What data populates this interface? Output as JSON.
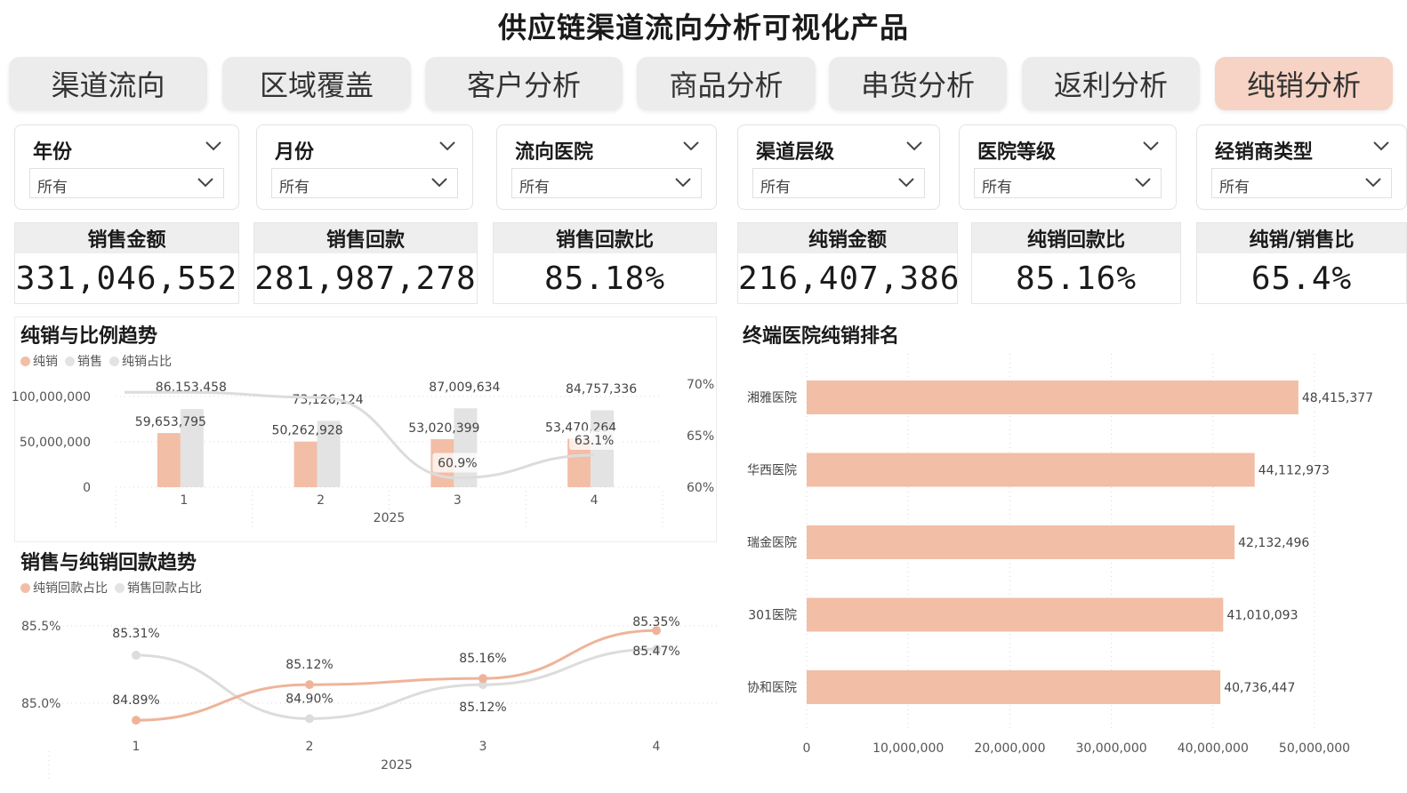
{
  "header": {
    "title": "供应链渠道流向分析可视化产品"
  },
  "tabs": [
    {
      "label": "渠道流向",
      "active": false
    },
    {
      "label": "区域覆盖",
      "active": false
    },
    {
      "label": "客户分析",
      "active": false
    },
    {
      "label": "商品分析",
      "active": false
    },
    {
      "label": "串货分析",
      "active": false
    },
    {
      "label": "返利分析",
      "active": false
    },
    {
      "label": "纯销分析",
      "active": true
    }
  ],
  "filters": [
    {
      "label": "年份",
      "value": "所有"
    },
    {
      "label": "月份",
      "value": "所有"
    },
    {
      "label": "流向医院",
      "value": "所有"
    },
    {
      "label": "渠道层级",
      "value": "所有"
    },
    {
      "label": "医院等级",
      "value": "所有"
    },
    {
      "label": "经销商类型",
      "value": "所有"
    }
  ],
  "kpis": [
    {
      "label": "销售金额",
      "value": "331,046,552"
    },
    {
      "label": "销售回款",
      "value": "281,987,278"
    },
    {
      "label": "销售回款比",
      "value": "85.18%"
    },
    {
      "label": "纯销金额",
      "value": "216,407,386"
    },
    {
      "label": "纯销回款比",
      "value": "85.16%"
    },
    {
      "label": "纯销/销售比",
      "value": "65.4%"
    }
  ],
  "colors": {
    "accent": "#f2bea6",
    "grey": "#e3e3e3",
    "line_grey": "#dcdcdc",
    "accent_line": "#eeb49a"
  },
  "chart_data": [
    {
      "type": "bar",
      "title": "纯销与比例趋势",
      "legend": [
        "纯销",
        "销售",
        "纯销占比"
      ],
      "categories": [
        "1",
        "2",
        "3",
        "4"
      ],
      "category_group": "2025",
      "series": [
        {
          "name": "纯销",
          "values": [
            59653795,
            50262928,
            53020399,
            53470264
          ],
          "labels": [
            "59,653,795",
            "50,262,928",
            "53,020,399",
            "53,470,264"
          ]
        },
        {
          "name": "销售",
          "values": [
            86153458,
            73126124,
            87009634,
            84757336
          ],
          "labels": [
            "86,153,458",
            "73,126,124",
            "87,009,634",
            "84,757,336"
          ]
        },
        {
          "name": "纯销占比",
          "values": [
            69.2,
            68.7,
            60.9,
            63.1
          ],
          "labels": [
            "",
            "",
            "60.9%",
            "63.1%"
          ]
        }
      ],
      "yticks_left": [
        "0",
        "50,000,000",
        "100,000,000"
      ],
      "ylim_left": [
        0,
        110000000
      ],
      "yticks_right": [
        "60%",
        "65%",
        "70%"
      ],
      "ylim_right": [
        60,
        70
      ]
    },
    {
      "type": "line",
      "title": "销售与纯销回款趋势",
      "legend": [
        "纯销回款占比",
        "销售回款占比"
      ],
      "x": [
        "1",
        "2",
        "3",
        "4"
      ],
      "x_group": "2025",
      "series": [
        {
          "name": "纯销回款占比",
          "values": [
            84.89,
            85.12,
            85.16,
            85.47
          ],
          "labels": [
            "84.89%",
            "85.12%",
            "85.16%",
            "85.47%"
          ]
        },
        {
          "name": "销售回款占比",
          "values": [
            85.31,
            84.9,
            85.12,
            85.35
          ],
          "labels": [
            "85.31%",
            "84.90%",
            "85.12%",
            "85.35%"
          ]
        }
      ],
      "yticks": [
        "85.0%",
        "85.5%"
      ],
      "ylim": [
        84.75,
        85.55
      ]
    },
    {
      "type": "bar",
      "orientation": "horizontal",
      "title": "终端医院纯销排名",
      "categories": [
        "湘雅医院",
        "华西医院",
        "瑞金医院",
        "301医院",
        "协和医院"
      ],
      "values": [
        48415377,
        44112973,
        42132496,
        41010093,
        40736447
      ],
      "labels": [
        "48,415,377",
        "44,112,973",
        "42,132,496",
        "41,010,093",
        "40,736,447"
      ],
      "xticks": [
        "0",
        "10,000,000",
        "20,000,000",
        "30,000,000",
        "40,000,000",
        "50,000,000"
      ],
      "xlim": [
        0,
        50000000
      ]
    }
  ]
}
